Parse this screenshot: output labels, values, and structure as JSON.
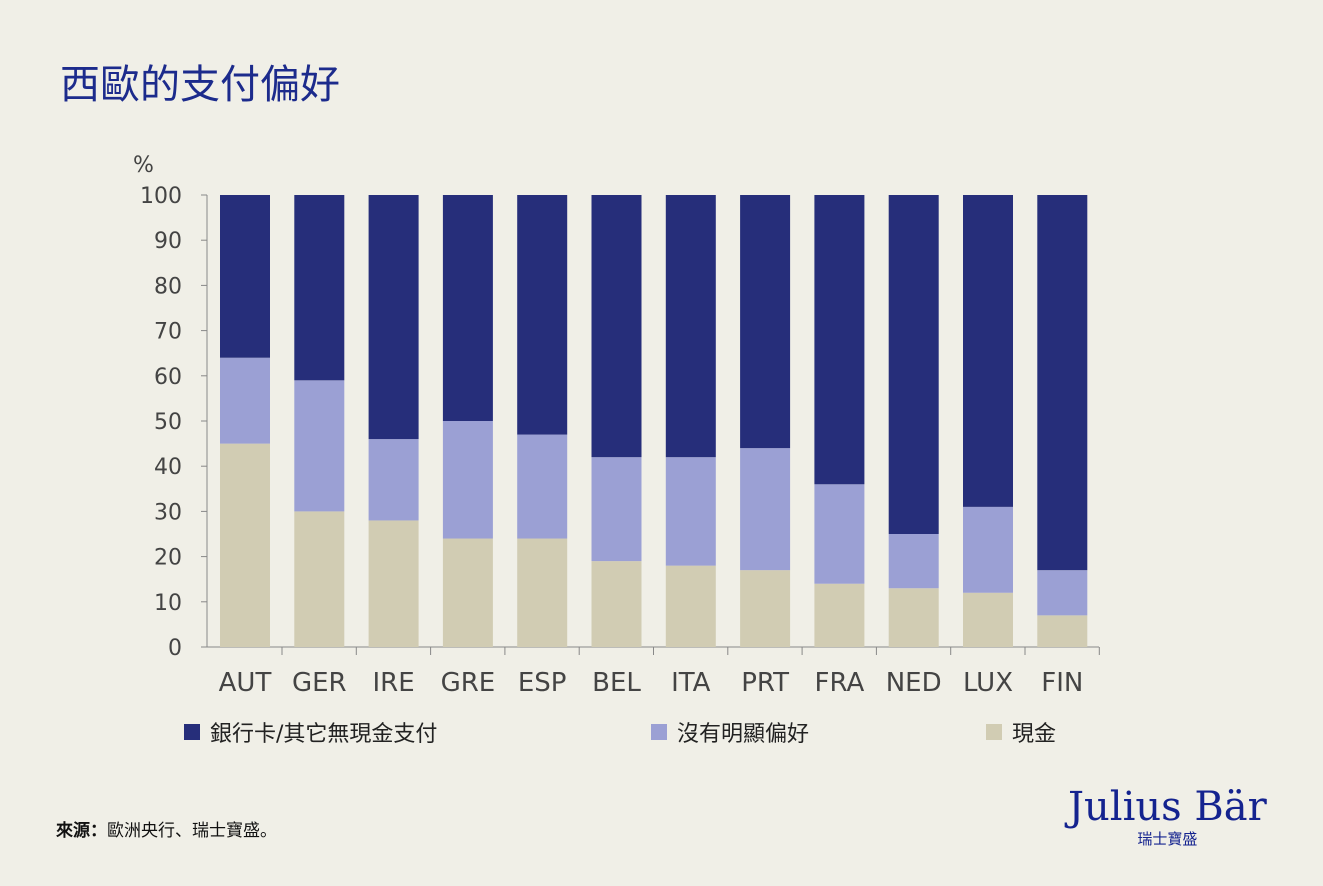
{
  "title": "西歐的支付偏好",
  "chart_data": {
    "type": "bar",
    "stacked": true,
    "ylabel": "%",
    "ylim": [
      0,
      100
    ],
    "yticks": [
      0,
      10,
      20,
      30,
      40,
      50,
      60,
      70,
      80,
      90,
      100
    ],
    "grid": false,
    "legend_position": "bottom",
    "categories": [
      "AUT",
      "GER",
      "IRE",
      "GRE",
      "ESP",
      "BEL",
      "ITA",
      "PRT",
      "FRA",
      "NED",
      "LUX",
      "FIN"
    ],
    "series": [
      {
        "name": "現金",
        "color": "#d1ccb3",
        "values": [
          45,
          30,
          28,
          24,
          24,
          19,
          18,
          17,
          14,
          13,
          12,
          7
        ]
      },
      {
        "name": "沒有明顯偏好",
        "color": "#9ba0d4",
        "values": [
          19,
          29,
          18,
          26,
          23,
          23,
          24,
          27,
          22,
          12,
          19,
          10
        ]
      },
      {
        "name": "銀行卡/其它無現金支付",
        "color": "#262e7a",
        "values": [
          36,
          41,
          54,
          50,
          53,
          58,
          58,
          56,
          64,
          75,
          69,
          83
        ]
      }
    ]
  },
  "legend": [
    {
      "label": "銀行卡/其它無現金支付",
      "color": "#262e7a"
    },
    {
      "label": "沒有明顯偏好",
      "color": "#9ba0d4"
    },
    {
      "label": "現金",
      "color": "#d1ccb3"
    }
  ],
  "source": {
    "label": "來源：",
    "text": "歐洲央行、瑞士寶盛。"
  },
  "logo": {
    "main": "Julius Bär",
    "sub": "瑞士寶盛"
  }
}
